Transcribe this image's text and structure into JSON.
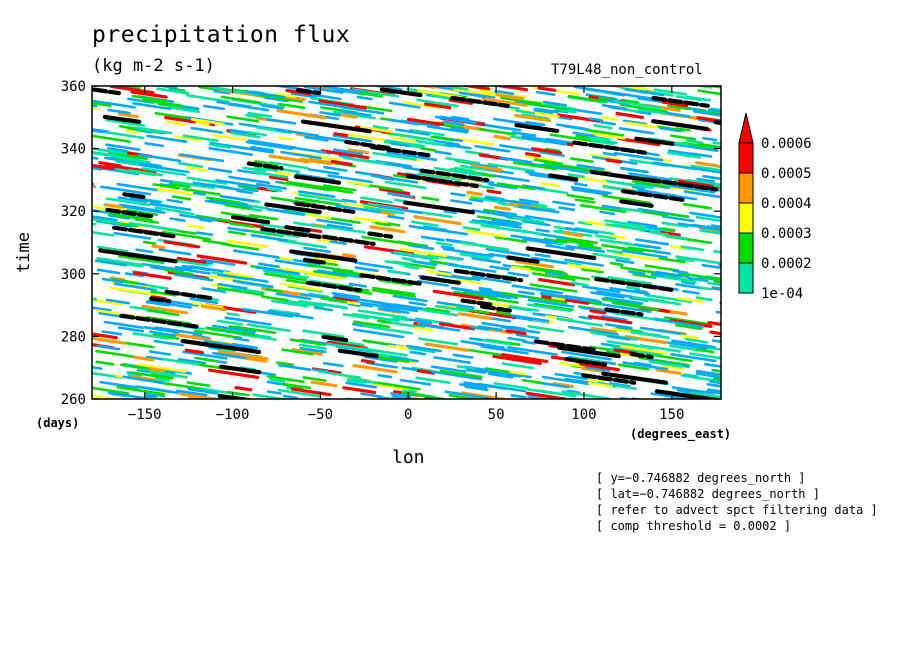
{
  "header": {
    "title": "precipitation flux",
    "units": "(kg m-2 s-1)",
    "run": "T79L48_non_control"
  },
  "chart_data": {
    "type": "heatmap",
    "title": "precipitation flux",
    "subtitle": "(kg m-2 s-1)",
    "xlabel": "lon",
    "ylabel": "time",
    "x_unit_label": "(degrees_east)",
    "y_unit_label": "(days)",
    "xlim": [
      -180,
      178
    ],
    "ylim": [
      260,
      360
    ],
    "x_ticks": [
      -150,
      -100,
      -50,
      0,
      50,
      100,
      150
    ],
    "x_tick_labels": [
      "−150",
      "−100",
      "−50",
      "0",
      "50",
      "100",
      "150"
    ],
    "y_ticks": [
      260,
      280,
      300,
      320,
      340,
      360
    ],
    "y_tick_labels": [
      "260",
      "280",
      "300",
      "320",
      "340",
      "360"
    ],
    "colorbar": {
      "levels": [
        0.0001,
        0.0002,
        0.0003,
        0.0004,
        0.0005,
        0.0006
      ],
      "level_labels": [
        "1e-04",
        "0.0002",
        "0.0003",
        "0.0004",
        "0.0005",
        "0.0006"
      ],
      "colors": [
        "#00aaff",
        "#00e6a0",
        "#00dd00",
        "#ffff00",
        "#ff9900",
        "#ff0000"
      ],
      "extend": "max"
    },
    "pattern": "eastward-propagating rain bands (diagonal streaks) with black filtered-signal contours",
    "contour_color": "#000000"
  },
  "notes": [
    "[ y=−0.746882 degrees_north ]",
    "[ lat=−0.746882 degrees_north ]",
    "[ refer to advect spct filtering data ]",
    "[ comp threshold = 0.0002 ]"
  ]
}
